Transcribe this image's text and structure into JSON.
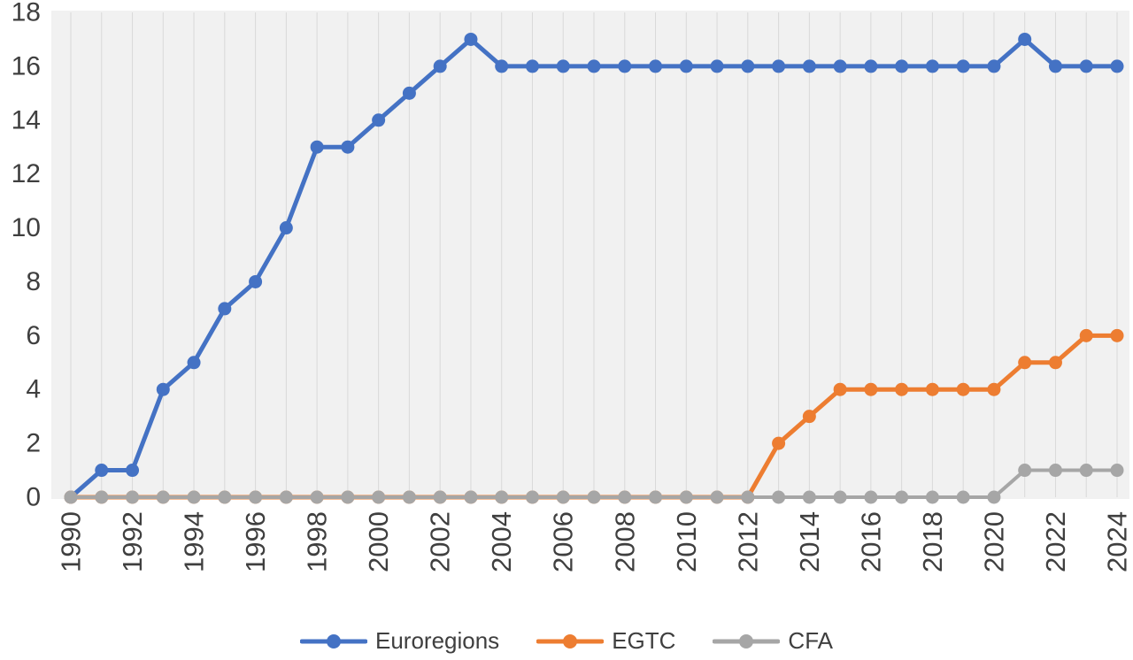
{
  "chart_data": {
    "type": "line",
    "title": "",
    "xlabel": "",
    "ylabel": "",
    "x": [
      1990,
      1991,
      1992,
      1993,
      1994,
      1995,
      1996,
      1997,
      1998,
      1999,
      2000,
      2001,
      2002,
      2003,
      2004,
      2005,
      2006,
      2007,
      2008,
      2009,
      2010,
      2011,
      2012,
      2013,
      2014,
      2015,
      2016,
      2017,
      2018,
      2019,
      2020,
      2021,
      2022,
      2023,
      2024
    ],
    "x_tick_labels": [
      "1990",
      "1992",
      "1994",
      "1996",
      "1998",
      "2000",
      "2002",
      "2004",
      "2006",
      "2008",
      "2010",
      "2012",
      "2014",
      "2016",
      "2018",
      "2020",
      "2022",
      "2024"
    ],
    "y_tick_labels": [
      "0",
      "2",
      "4",
      "6",
      "8",
      "10",
      "12",
      "14",
      "16",
      "18"
    ],
    "ylim": [
      0,
      18
    ],
    "ytick_step": 2,
    "grid": "vertical-only",
    "gridline_color": "#d9d9d9",
    "plot_background": "#f1f1f1",
    "axis_text_color": "#3f3f3f",
    "legend_position": "bottom",
    "series": [
      {
        "name": "Euroregions",
        "color": "#4472C4",
        "values": [
          0,
          1,
          1,
          4,
          5,
          7,
          8,
          10,
          13,
          13,
          14,
          15,
          16,
          17,
          16,
          16,
          16,
          16,
          16,
          16,
          16,
          16,
          16,
          16,
          16,
          16,
          16,
          16,
          16,
          16,
          16,
          17,
          16,
          16,
          16
        ]
      },
      {
        "name": "EGTC",
        "color": "#ED7D31",
        "values": [
          0,
          0,
          0,
          0,
          0,
          0,
          0,
          0,
          0,
          0,
          0,
          0,
          0,
          0,
          0,
          0,
          0,
          0,
          0,
          0,
          0,
          0,
          0,
          2,
          3,
          4,
          4,
          4,
          4,
          4,
          4,
          5,
          5,
          6,
          6
        ]
      },
      {
        "name": "CFA",
        "color": "#A6A6A6",
        "values": [
          0,
          0,
          0,
          0,
          0,
          0,
          0,
          0,
          0,
          0,
          0,
          0,
          0,
          0,
          0,
          0,
          0,
          0,
          0,
          0,
          0,
          0,
          0,
          0,
          0,
          0,
          0,
          0,
          0,
          0,
          0,
          1,
          1,
          1,
          1
        ]
      }
    ]
  }
}
